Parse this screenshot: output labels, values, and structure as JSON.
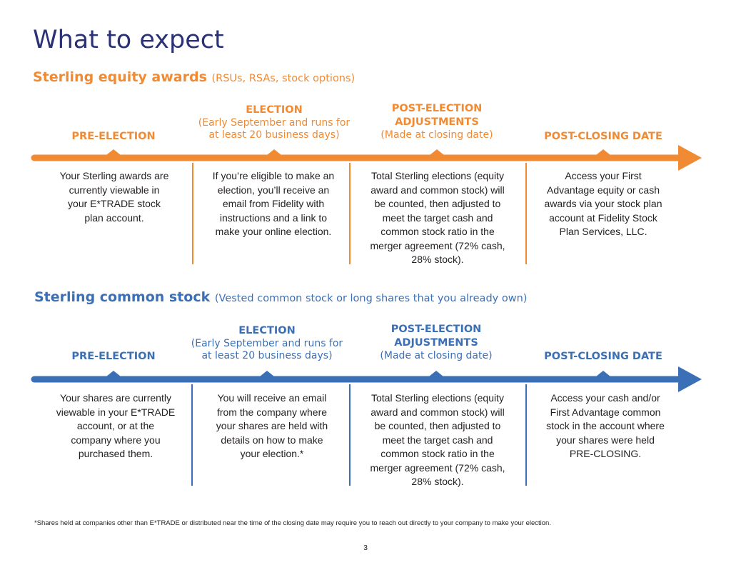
{
  "page": {
    "title": "What to expect",
    "footnote": "*Shares held at companies other than E*TRADE or distributed near the time of the closing date may require you to reach out directly to your company to make your election.",
    "page_number": "3"
  },
  "colors": {
    "title": "#2b3175",
    "orange": "#f08a33",
    "blue": "#3b6fb6"
  },
  "sections": [
    {
      "title": "Sterling equity awards",
      "subtitle": "(RSUs, RSAs, stock options)",
      "phases": [
        {
          "name": "PRE-ELECTION",
          "note": ""
        },
        {
          "name": "ELECTION",
          "note": "(Early September and runs for at least 20 business days)"
        },
        {
          "name": "POST-ELECTION ADJUSTMENTS",
          "note": "(Made at closing date)"
        },
        {
          "name": "POST-CLOSING DATE",
          "note": ""
        }
      ],
      "descriptions": [
        "Your Sterling awards are currently viewable in your E*TRADE stock plan account.",
        "If you’re eligible to make an election, you’ll receive an email from Fidelity with instructions and a link to make your online election.",
        "Total Sterling elections (equity award and common stock) will be counted, then adjusted to meet the target cash and common stock ratio in the merger agreement (72% cash, 28% stock).",
        "Access your First Advantage equity or cash awards via your stock plan account at Fidelity Stock Plan Services, LLC."
      ]
    },
    {
      "title": "Sterling common stock",
      "subtitle": "(Vested common stock or long shares that you already own)",
      "phases": [
        {
          "name": "PRE-ELECTION",
          "note": ""
        },
        {
          "name": "ELECTION",
          "note": "(Early September and runs for at least 20 business days)"
        },
        {
          "name": "POST-ELECTION ADJUSTMENTS",
          "note": "(Made at closing date)"
        },
        {
          "name": "POST-CLOSING DATE",
          "note": ""
        }
      ],
      "descriptions": [
        "Your shares are currently viewable in your E*TRADE account, or at the company where you purchased them.",
        "You will receive an email from the company where your shares are held with details on how to make your election.*",
        "Total Sterling elections (equity award and common stock) will be counted, then adjusted to meet the target cash and common stock ratio in the merger agreement (72% cash, 28% stock).",
        "Access your cash and/or First Advantage common stock in the account where your shares were held PRE-CLOSING."
      ]
    }
  ]
}
